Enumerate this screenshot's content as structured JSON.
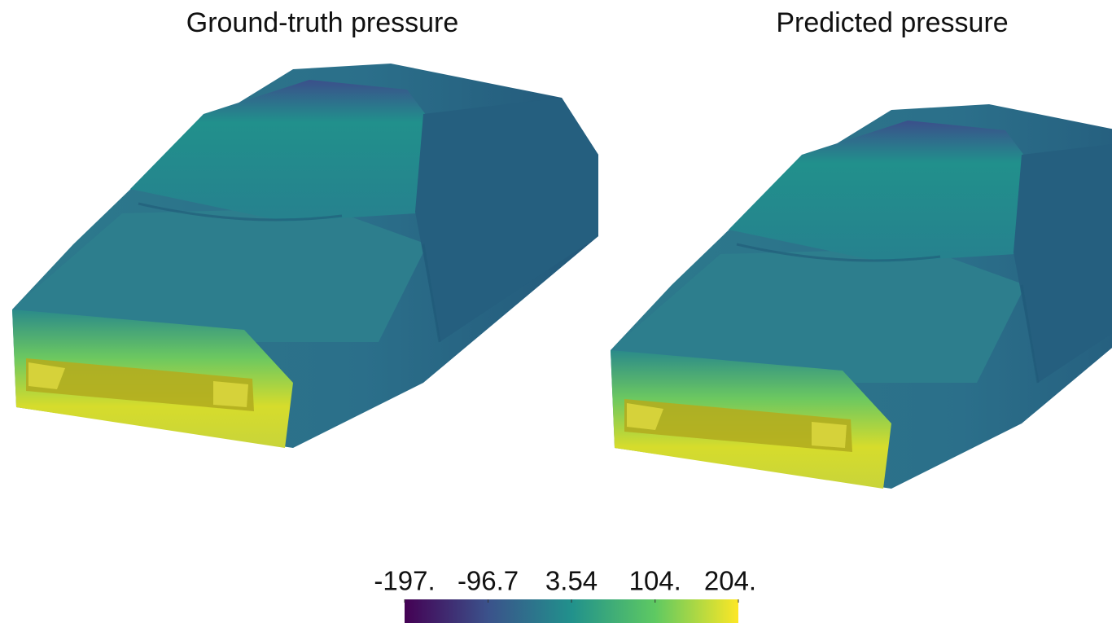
{
  "panels": [
    {
      "title": "Ground-truth pressure"
    },
    {
      "title": "Predicted pressure"
    }
  ],
  "colorbar": {
    "lim": [
      -197,
      204
    ],
    "ticks": [
      {
        "value": -197,
        "label": "-197."
      },
      -96.7,
      3.54,
      {
        "value": 104,
        "label": "104."
      },
      {
        "value": 204,
        "label": "204."
      }
    ],
    "colors": [
      "#440154",
      "#3b528b",
      "#21918c",
      "#5ec962",
      "#fde725"
    ]
  }
}
